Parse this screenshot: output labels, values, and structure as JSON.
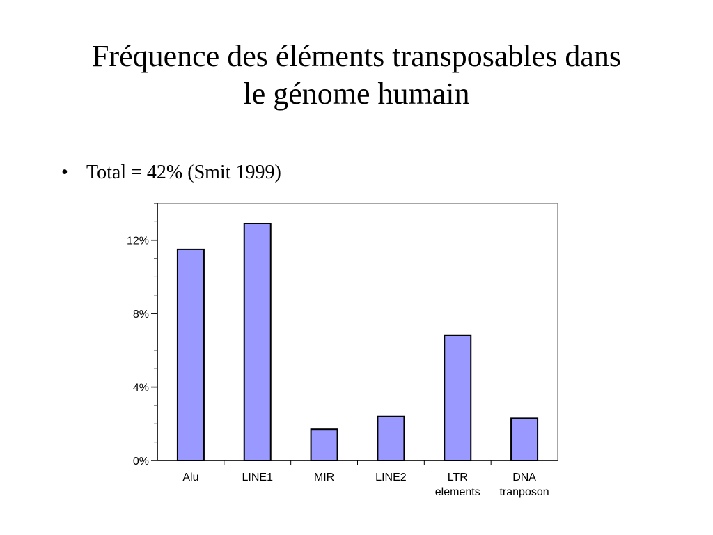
{
  "slide": {
    "title_line1": "Fréquence des éléments transposables dans",
    "title_line2": "le génome humain",
    "bullet_symbol": "•",
    "bullet_text": "Total = 42% (Smit 1999)"
  },
  "chart_data": {
    "type": "bar",
    "categories": [
      [
        "Alu"
      ],
      [
        "LINE1"
      ],
      [
        "MIR"
      ],
      [
        "LINE2"
      ],
      [
        "LTR",
        "elements"
      ],
      [
        "DNA",
        "tranposon"
      ]
    ],
    "values": [
      11.5,
      12.9,
      1.7,
      2.4,
      6.8,
      2.3
    ],
    "value_unit": "%",
    "ylim": [
      0,
      14
    ],
    "y_ticks": [
      0,
      4,
      8,
      12
    ],
    "y_tick_labels": [
      "0%",
      "4%",
      "8%",
      "12%"
    ],
    "y_minor_step": 1,
    "grid": false,
    "colors": {
      "bar_fill": "#9999ff",
      "bar_stroke": "#000000",
      "frame": "#888888",
      "axis": "#000000"
    }
  }
}
